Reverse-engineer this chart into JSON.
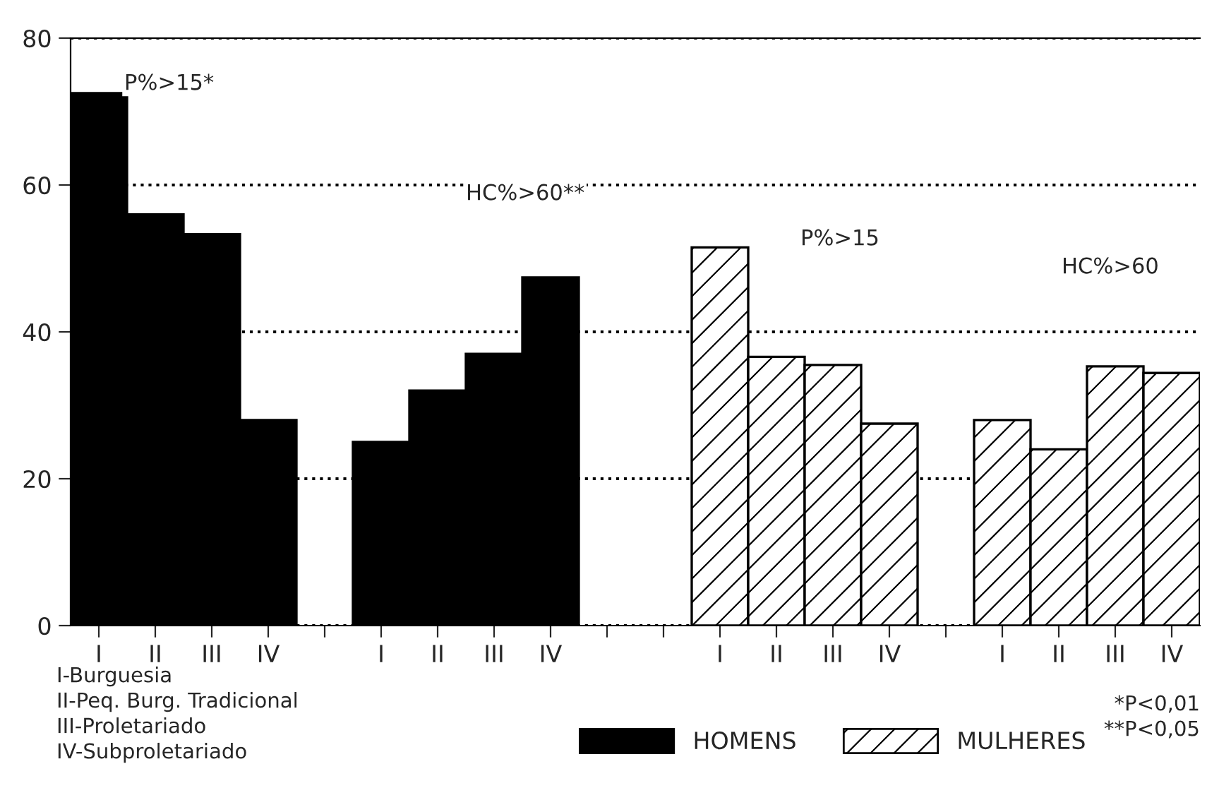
{
  "chart_data": {
    "type": "bar",
    "categories": [
      "I",
      "II",
      "III",
      "IV",
      null,
      "I",
      "II",
      "III",
      "IV",
      null,
      null,
      "I",
      "II",
      "III",
      "IV",
      null,
      "I",
      "II",
      "III",
      "IV"
    ],
    "series": [
      {
        "name": "HOMENS",
        "color": "#000000",
        "values": [
          72.5,
          56,
          53.3,
          28,
          null,
          25,
          32,
          37,
          47.4,
          null,
          null,
          null,
          null,
          null,
          null,
          null,
          null,
          null,
          null,
          null
        ]
      },
      {
        "name": "MULHERES",
        "color": "#000000",
        "values": [
          null,
          null,
          null,
          null,
          null,
          null,
          null,
          null,
          null,
          null,
          null,
          51.5,
          36.6,
          35.5,
          27.5,
          null,
          28,
          24,
          35.3,
          34.4
        ]
      }
    ],
    "ylim": [
      0,
      80
    ],
    "yticks": [
      0,
      20,
      40,
      60,
      80
    ],
    "grid": "y",
    "line_style": "dotted",
    "legend": "bottom",
    "annotations": [
      "P%>15*",
      "HC%>60**",
      "P%>15",
      "HC%>60",
      "I-Burguesia\nII-Peq. Burg. Tradicional\nIII-Proletariado\nIV-Subproletariado",
      "*P<0,01\n**P<0,05"
    ]
  }
}
